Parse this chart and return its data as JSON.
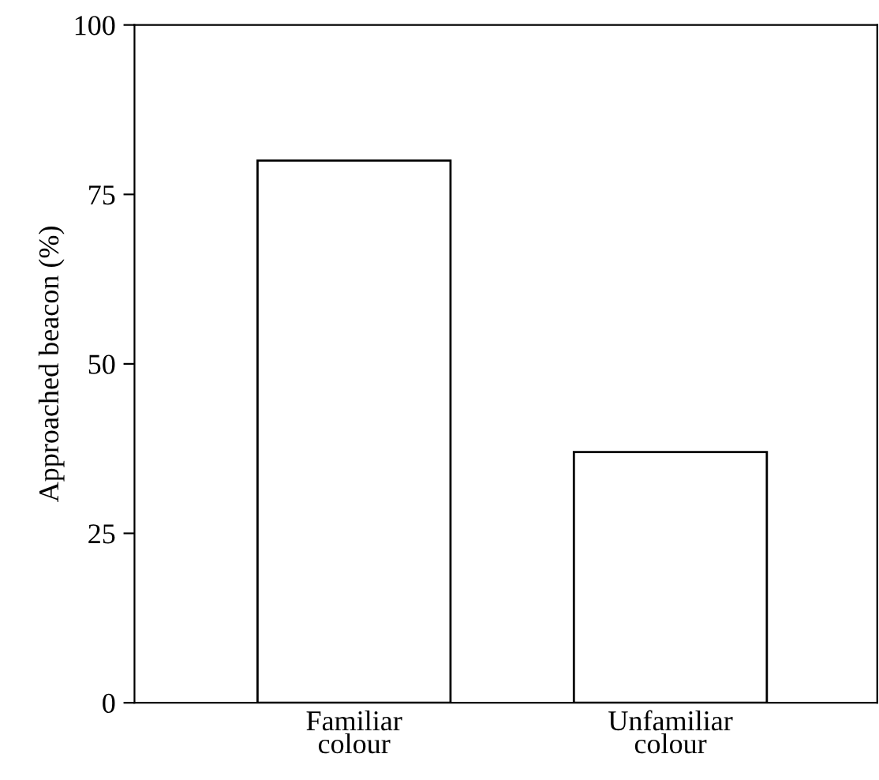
{
  "chart_data": {
    "type": "bar",
    "ylabel": "Approached beacon (%)",
    "categories": [
      "Familiar\ncolour",
      "Unfamiliar\ncolour"
    ],
    "values": [
      80,
      37
    ],
    "color": "#ffffff",
    "ylim": [
      0,
      100
    ],
    "yticks": [
      0,
      25,
      50,
      75,
      100
    ],
    "grid": false
  }
}
